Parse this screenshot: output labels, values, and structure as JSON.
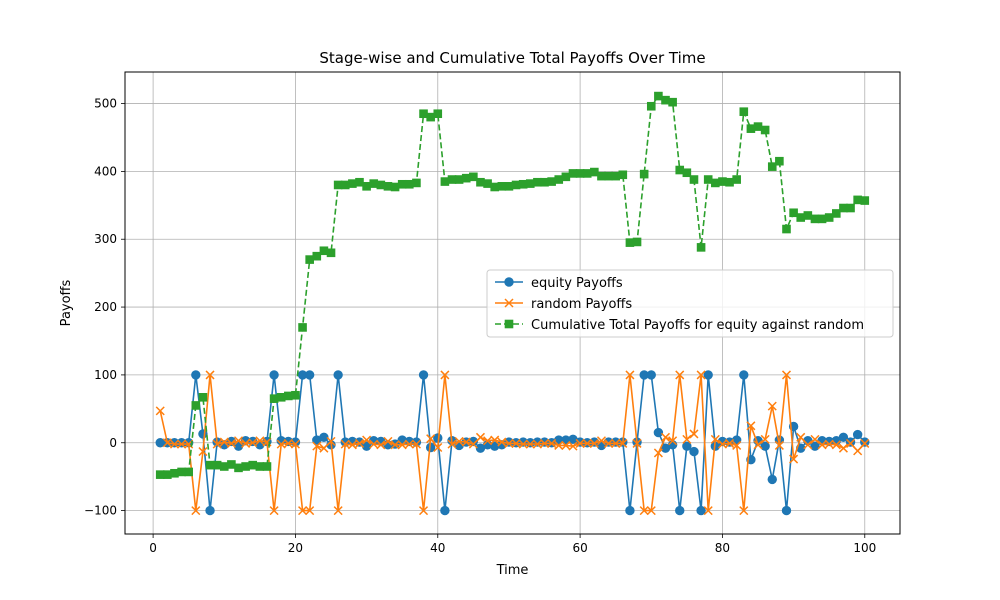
{
  "chart_data": {
    "type": "line",
    "title": "Stage-wise and Cumulative Total Payoffs Over Time",
    "xlabel": "Time",
    "ylabel": "Payoffs",
    "xlim": [
      -3.95,
      104.95
    ],
    "ylim": [
      -134.5,
      546.5
    ],
    "xticks": [
      0,
      20,
      40,
      60,
      80,
      100
    ],
    "yticks": [
      -100,
      0,
      100,
      200,
      300,
      400,
      500
    ],
    "grid": true,
    "legend_position": "center-right",
    "series": [
      {
        "name": "equity Payoffs",
        "color": "#1f77b4",
        "marker": "circle",
        "line_style": "solid",
        "values": [
          null,
          0,
          0,
          0,
          0,
          0,
          100,
          13,
          -100,
          1,
          -3,
          2,
          -5,
          3,
          2,
          -3,
          2,
          100,
          3,
          2,
          1,
          100,
          100,
          4,
          8,
          -3,
          100,
          1,
          2,
          1,
          -5,
          3,
          2,
          -3,
          -2,
          4,
          2,
          1,
          100,
          -7,
          7,
          -100,
          3,
          -4,
          1,
          2,
          -8,
          -3,
          -5,
          -3,
          1,
          0,
          1,
          0,
          1,
          1,
          0,
          4,
          4,
          5,
          1,
          0,
          1,
          -4,
          1,
          1,
          1,
          -100,
          1,
          100,
          100,
          15,
          -8,
          -3,
          -100,
          -5,
          -13,
          -100,
          100,
          -5,
          2,
          1,
          4,
          100,
          -25,
          3,
          -5,
          -54,
          4,
          -100,
          24,
          -8,
          3,
          -5,
          3,
          2,
          3,
          8,
          1,
          12,
          1
        ]
      },
      {
        "name": "random Payoffs",
        "color": "#ff7f0e",
        "marker": "x",
        "line_style": "solid",
        "values": [
          null,
          47,
          0,
          -2,
          -2,
          -2,
          -100,
          -13,
          100,
          -2,
          1,
          -1,
          3,
          -1,
          0,
          3,
          1,
          -100,
          -2,
          -1,
          -2,
          -100,
          -100,
          -5,
          -8,
          2,
          -100,
          -2,
          -3,
          -1,
          4,
          -2,
          -3,
          2,
          -3,
          -3,
          -2,
          -2,
          -100,
          6,
          -7,
          100,
          -2,
          2,
          1,
          -2,
          8,
          3,
          4,
          1,
          -1,
          -1,
          -2,
          -2,
          -2,
          -1,
          -1,
          -4,
          -4,
          -5,
          -1,
          -1,
          -1,
          3,
          -1,
          -1,
          -1,
          100,
          -1,
          -100,
          -100,
          -15,
          8,
          3,
          100,
          5,
          13,
          100,
          -100,
          5,
          -2,
          -1,
          -4,
          -100,
          25,
          -3,
          5,
          54,
          -4,
          100,
          -24,
          8,
          -3,
          5,
          -3,
          -2,
          -3,
          -8,
          -1,
          -12,
          -1
        ]
      },
      {
        "name": "Cumulative Total Payoffs for equity against random",
        "color": "#2ca02c",
        "marker": "square",
        "line_style": "dashed",
        "values": [
          null,
          -47,
          -47,
          -45,
          -43,
          -43,
          55,
          67,
          -33,
          -33,
          -35,
          -32,
          -37,
          -35,
          -33,
          -35,
          -35,
          65,
          67,
          69,
          70,
          170,
          270,
          275,
          283,
          280,
          380,
          380,
          382,
          384,
          378,
          382,
          380,
          378,
          377,
          381,
          381,
          383,
          485,
          480,
          485,
          385,
          388,
          388,
          390,
          392,
          384,
          382,
          377,
          378,
          378,
          380,
          381,
          382,
          384,
          384,
          385,
          388,
          392,
          397,
          397,
          397,
          399,
          393,
          393,
          393,
          395,
          295,
          296,
          396,
          496,
          511,
          505,
          502,
          402,
          398,
          388,
          288,
          388,
          383,
          385,
          384,
          388,
          488,
          463,
          466,
          461,
          407,
          415,
          315,
          339,
          332,
          335,
          330,
          330,
          332,
          338,
          346,
          346,
          358,
          357
        ]
      }
    ],
    "x": [
      0,
      1,
      2,
      3,
      4,
      5,
      6,
      7,
      8,
      9,
      10,
      11,
      12,
      13,
      14,
      15,
      16,
      17,
      18,
      19,
      20,
      21,
      22,
      23,
      24,
      25,
      26,
      27,
      28,
      29,
      30,
      31,
      32,
      33,
      34,
      35,
      36,
      37,
      38,
      39,
      40,
      41,
      42,
      43,
      44,
      45,
      46,
      47,
      48,
      49,
      50,
      51,
      52,
      53,
      54,
      55,
      56,
      57,
      58,
      59,
      60,
      61,
      62,
      63,
      64,
      65,
      66,
      67,
      68,
      69,
      70,
      71,
      72,
      73,
      74,
      75,
      76,
      77,
      78,
      79,
      80,
      81,
      82,
      83,
      84,
      85,
      86,
      87,
      88,
      89,
      90,
      91,
      92,
      93,
      94,
      95,
      96,
      97,
      98,
      99,
      100
    ]
  }
}
